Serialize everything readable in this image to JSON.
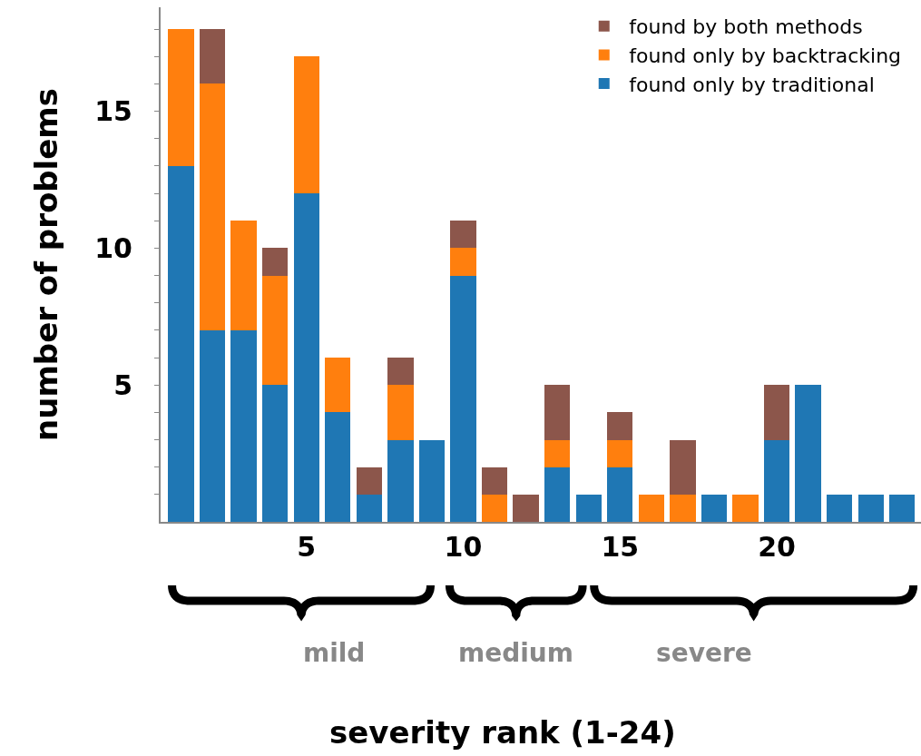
{
  "chart_data": {
    "type": "bar",
    "stacked": true,
    "ylabel": "number of problems",
    "x": [
      1,
      2,
      3,
      4,
      5,
      6,
      7,
      8,
      9,
      10,
      11,
      12,
      13,
      14,
      15,
      16,
      17,
      18,
      19,
      20,
      21,
      22,
      23,
      24
    ],
    "xlim": [
      0.35,
      24.6
    ],
    "xticks": [
      5,
      10,
      15,
      20
    ],
    "ylim": [
      0,
      18.8
    ],
    "yticks": [
      {
        "value": 1,
        "label": null
      },
      {
        "value": 2,
        "label": null
      },
      {
        "value": 3,
        "label": null
      },
      {
        "value": 4,
        "label": null
      },
      5,
      {
        "value": 6,
        "label": null
      },
      {
        "value": 7,
        "label": null
      },
      {
        "value": 8,
        "label": null
      },
      {
        "value": 9,
        "label": null
      },
      10,
      {
        "value": 11,
        "label": null
      },
      {
        "value": 12,
        "label": null
      },
      {
        "value": 13,
        "label": null
      },
      {
        "value": 14,
        "label": null
      },
      15,
      {
        "value": 16,
        "label": null
      },
      {
        "value": 17,
        "label": null
      },
      {
        "value": 18,
        "label": null
      }
    ],
    "series": [
      {
        "name": "found only by traditional",
        "color": "#1f77b4",
        "values": [
          13,
          7,
          7,
          5,
          12,
          4,
          1,
          3,
          3,
          9,
          0,
          0,
          2,
          1,
          2,
          0,
          0,
          1,
          0,
          3,
          5,
          1,
          1,
          1
        ]
      },
      {
        "name": "found only by backtracking",
        "color": "#ff7f0e",
        "values": [
          5,
          9,
          4,
          4,
          5,
          2,
          0,
          2,
          0,
          1,
          1,
          0,
          1,
          0,
          1,
          1,
          1,
          0,
          1,
          0,
          0,
          0,
          0,
          0
        ]
      },
      {
        "name": "found by both methods",
        "color": "#8c564b",
        "values": [
          0,
          2,
          0,
          1,
          0,
          0,
          1,
          1,
          0,
          1,
          1,
          1,
          2,
          0,
          1,
          0,
          2,
          0,
          0,
          2,
          0,
          0,
          0,
          0
        ]
      }
    ],
    "legend": "top right",
    "grid": false,
    "annotations": [
      "mild",
      "medium",
      "severe",
      "severity rank (1-24)"
    ]
  }
}
